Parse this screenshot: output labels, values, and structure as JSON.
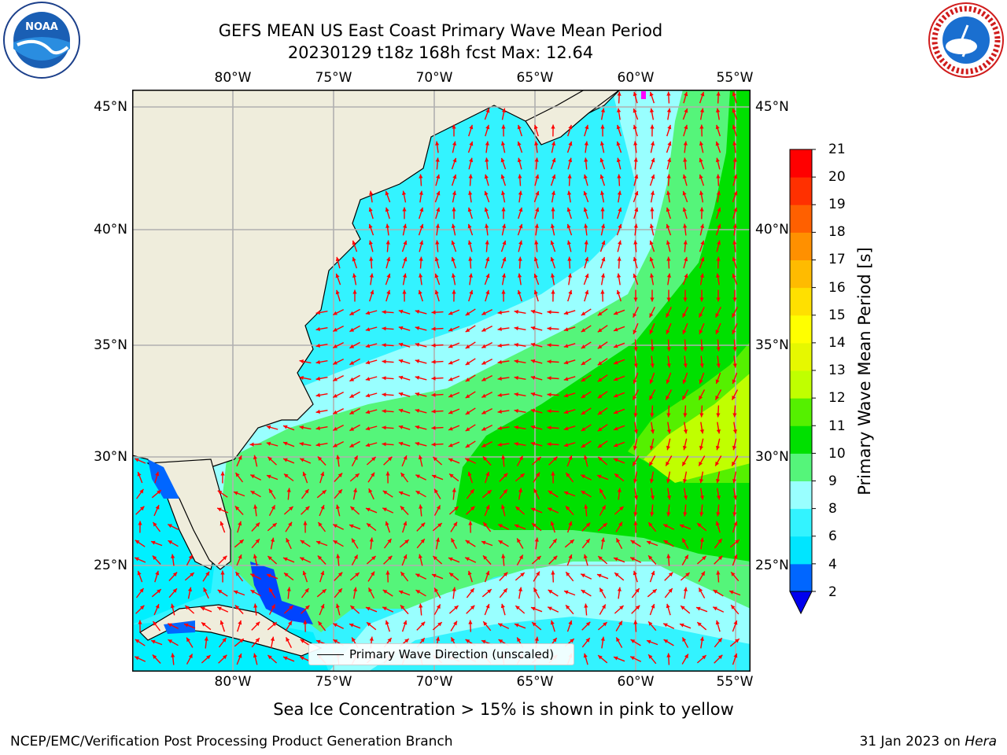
{
  "title": {
    "line1": "GEFS MEAN US East Coast Primary Wave Mean Period",
    "line2": "20230129 t18z 168h fcst   Max: 12.64"
  },
  "axes": {
    "lon_labels": [
      "80°W",
      "75°W",
      "70°W",
      "65°W",
      "60°W",
      "55°W"
    ],
    "lat_labels": [
      "45°N",
      "40°N",
      "35°N",
      "30°N",
      "25°N"
    ],
    "lon_values": [
      -80,
      -75,
      -70,
      -65,
      -60,
      -55
    ],
    "lat_values": [
      45,
      40,
      35,
      30,
      25
    ],
    "lon_range": [
      -85,
      -54.5
    ],
    "lat_range": [
      20.5,
      46.2
    ]
  },
  "colorbar": {
    "label": "Primary Wave Mean Period [s]",
    "ticks": [
      "2",
      "4",
      "6",
      "8",
      "9",
      "10",
      "11",
      "12",
      "13",
      "14",
      "15",
      "16",
      "17",
      "18",
      "19",
      "20",
      "21"
    ],
    "colors": [
      "#0066ff",
      "#00e5ff",
      "#33f3ff",
      "#99ffff",
      "#55f57a",
      "#00e000",
      "#55f000",
      "#c0ff00",
      "#e6f800",
      "#ffff00",
      "#ffe000",
      "#ffbb00",
      "#ff9000",
      "#ff6000",
      "#ff3000",
      "#ff0000"
    ],
    "underflow_color": "#0000ee"
  },
  "legend": {
    "label": "Primary Wave Direction (unscaled)"
  },
  "note": "Sea Ice Concentration > 15% is shown in pink to yellow",
  "footer": {
    "left": "NCEP/EMC/Verification Post Processing Product Generation Branch",
    "right_prefix": "31 Jan 2023 on ",
    "right_host": "Hera"
  },
  "logos": {
    "left": "NOAA",
    "right": "NATIONAL WEATHER SERVICE"
  },
  "colors": {
    "land": "#efeddc",
    "grid": "#b0b0b0",
    "arrow": "#ff0000",
    "coast": "#000000"
  }
}
